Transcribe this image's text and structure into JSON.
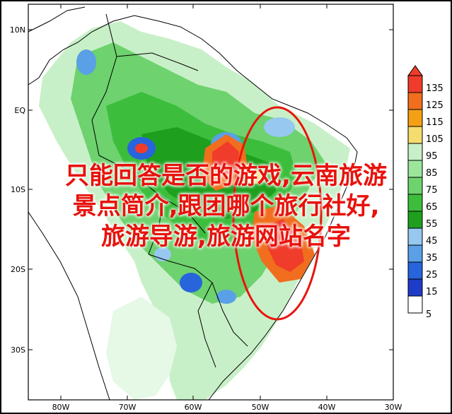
{
  "map": {
    "lat_labels": [
      "10N",
      "EQ",
      "10S",
      "20S",
      "30S"
    ],
    "lon_labels": [
      "80W",
      "70W",
      "60W",
      "50W",
      "40W",
      "30W"
    ],
    "highlight_color": "#e8140c"
  },
  "colorbar": {
    "labels": [
      "135",
      "125",
      "115",
      "105",
      "95",
      "85",
      "75",
      "65",
      "55",
      "45",
      "35",
      "25",
      "15",
      "5"
    ],
    "colors": [
      "#f03c2a",
      "#f06e1e",
      "#f5a014",
      "#f5dc6e",
      "#c8f0c8",
      "#9be69b",
      "#6ed26e",
      "#3cbe3c",
      "#1ea01e",
      "#96c8f0",
      "#5aa0e6",
      "#2864dc",
      "#1e3cc8",
      "#ffffff"
    ]
  },
  "overlay": {
    "lines": [
      "只能回答是否的游戏,云南旅游",
      "景点简介,跟团哪个旅行社好,",
      "旅游导游,旅游网站名字"
    ]
  }
}
